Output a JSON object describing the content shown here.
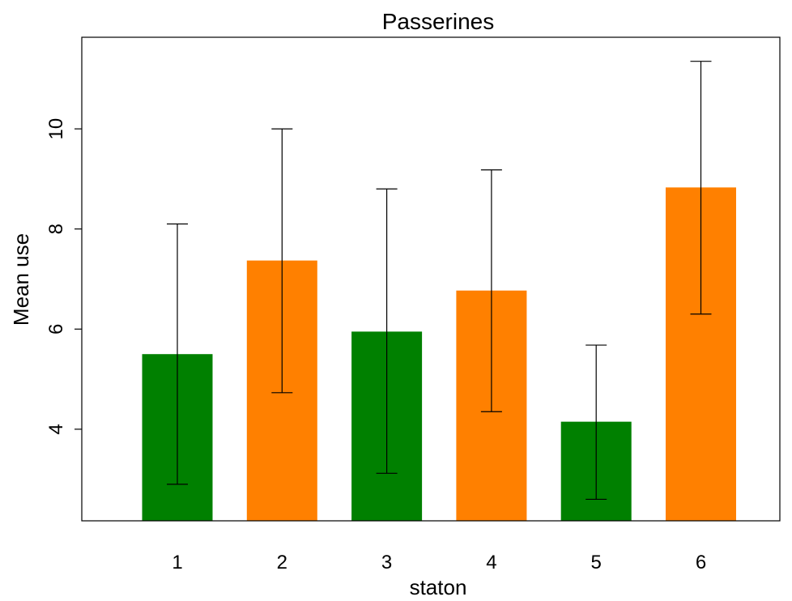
{
  "chart_data": {
    "type": "bar",
    "title": "Passerines",
    "xlabel": "staton",
    "ylabel": "Mean use",
    "categories": [
      "1",
      "2",
      "3",
      "4",
      "5",
      "6"
    ],
    "values": [
      5.5,
      7.37,
      5.95,
      6.77,
      4.15,
      8.83
    ],
    "error_low": [
      2.9,
      4.73,
      3.12,
      4.35,
      2.6,
      6.3
    ],
    "error_high": [
      8.1,
      10.0,
      8.8,
      9.18,
      5.68,
      11.35
    ],
    "ylim": [
      2.17,
      11.83
    ],
    "yticks": [
      4,
      6,
      8,
      10
    ],
    "grid": false,
    "colors": [
      "#008000",
      "#ff8000",
      "#008000",
      "#ff8000",
      "#008000",
      "#ff8000"
    ]
  }
}
